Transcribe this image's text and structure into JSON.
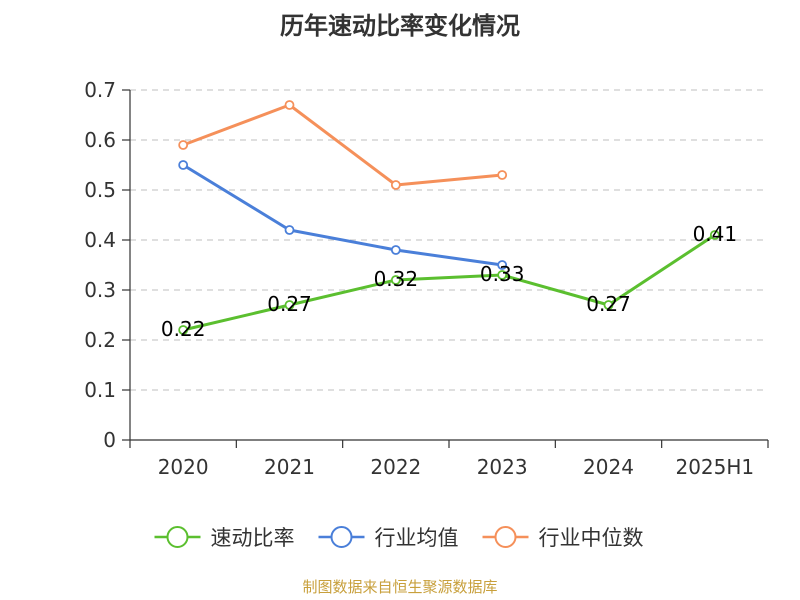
{
  "chart_data": {
    "type": "line",
    "title": "历年速动比率变化情况",
    "categories": [
      "2020",
      "2021",
      "2022",
      "2023",
      "2024",
      "2025H1"
    ],
    "ylim": [
      0,
      0.7
    ],
    "yticks": [
      "0",
      "0.1",
      "0.2",
      "0.3",
      "0.4",
      "0.5",
      "0.6",
      "0.7"
    ],
    "grid": true,
    "legend_position": "bottom",
    "series": [
      {
        "name": "速动比率",
        "color": "#5bbf2f",
        "values": [
          0.22,
          0.27,
          0.32,
          0.33,
          0.27,
          0.41
        ],
        "labels": [
          "0.22",
          "0.27",
          "0.32",
          "0.33",
          "0.27",
          "0.41"
        ]
      },
      {
        "name": "行业均值",
        "color": "#4a7fd9",
        "values": [
          0.55,
          0.42,
          0.38,
          0.35,
          null,
          null
        ]
      },
      {
        "name": "行业中位数",
        "color": "#f5905a",
        "values": [
          0.59,
          0.67,
          0.51,
          0.53,
          null,
          null
        ]
      }
    ]
  },
  "source_text": "制图数据来自恒生聚源数据库",
  "source_color": "#c8a03c"
}
